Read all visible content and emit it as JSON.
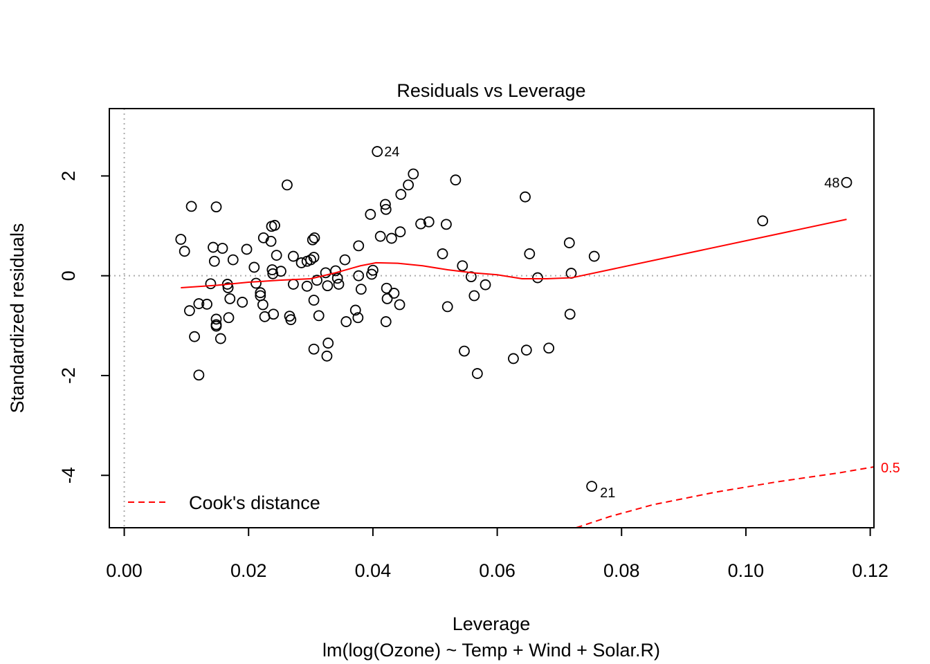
{
  "chart_data": {
    "type": "scatter",
    "title": "Residuals vs Leverage",
    "xlabel": "Leverage",
    "subtitle": "lm(log(Ozone) ~ Temp + Wind + Solar.R)",
    "ylabel": "Standardized residuals",
    "xlim": [
      -0.0024,
      0.1206
    ],
    "ylim": [
      -5.05,
      3.35
    ],
    "xticks": [
      0.0,
      0.02,
      0.04,
      0.06,
      0.08,
      0.1,
      0.12
    ],
    "xtick_labels": [
      "0.00",
      "0.02",
      "0.04",
      "0.06",
      "0.08",
      "0.10",
      "0.12"
    ],
    "yticks": [
      -4,
      -2,
      0,
      2
    ],
    "ytick_labels": [
      "-4",
      "-2",
      "0",
      "2"
    ],
    "grid": false,
    "reference_lines": {
      "h": 0,
      "v": 0,
      "style": "dotted",
      "color": "#aaaaaa"
    },
    "colors": {
      "points": "#000000",
      "smooth": "#ff0000",
      "cooks": "#ff0000"
    },
    "points": [
      {
        "x": 0.0091,
        "y": 0.73
      },
      {
        "x": 0.0097,
        "y": 0.49
      },
      {
        "x": 0.0105,
        "y": -0.7
      },
      {
        "x": 0.0108,
        "y": 1.39
      },
      {
        "x": 0.0113,
        "y": -1.22
      },
      {
        "x": 0.012,
        "y": -0.56
      },
      {
        "x": 0.012,
        "y": -1.99
      },
      {
        "x": 0.0133,
        "y": -0.57
      },
      {
        "x": 0.0139,
        "y": -0.16
      },
      {
        "x": 0.0143,
        "y": 0.57
      },
      {
        "x": 0.0145,
        "y": 0.29
      },
      {
        "x": 0.0148,
        "y": 1.38
      },
      {
        "x": 0.0148,
        "y": -0.87
      },
      {
        "x": 0.0148,
        "y": -0.98
      },
      {
        "x": 0.0148,
        "y": -1.01
      },
      {
        "x": 0.0155,
        "y": -1.26
      },
      {
        "x": 0.0158,
        "y": 0.55
      },
      {
        "x": 0.0166,
        "y": -0.17
      },
      {
        "x": 0.0167,
        "y": -0.24
      },
      {
        "x": 0.0168,
        "y": -0.84
      },
      {
        "x": 0.017,
        "y": -0.46
      },
      {
        "x": 0.0175,
        "y": 0.32
      },
      {
        "x": 0.019,
        "y": -0.53
      },
      {
        "x": 0.0197,
        "y": 0.53
      },
      {
        "x": 0.0209,
        "y": 0.17
      },
      {
        "x": 0.0212,
        "y": -0.15
      },
      {
        "x": 0.0219,
        "y": -0.34
      },
      {
        "x": 0.0219,
        "y": -0.4
      },
      {
        "x": 0.0223,
        "y": -0.58
      },
      {
        "x": 0.0224,
        "y": 0.76
      },
      {
        "x": 0.0226,
        "y": -0.82
      },
      {
        "x": 0.0236,
        "y": 0.69
      },
      {
        "x": 0.0237,
        "y": 0.99
      },
      {
        "x": 0.0238,
        "y": 0.12
      },
      {
        "x": 0.0239,
        "y": 0.04
      },
      {
        "x": 0.024,
        "y": -0.77
      },
      {
        "x": 0.0242,
        "y": 1.01
      },
      {
        "x": 0.0245,
        "y": 0.41
      },
      {
        "x": 0.0252,
        "y": 0.09
      },
      {
        "x": 0.0262,
        "y": 1.82
      },
      {
        "x": 0.0266,
        "y": -0.81
      },
      {
        "x": 0.0268,
        "y": -0.88
      },
      {
        "x": 0.0272,
        "y": -0.17
      },
      {
        "x": 0.0272,
        "y": 0.39
      },
      {
        "x": 0.0285,
        "y": 0.26
      },
      {
        "x": 0.0294,
        "y": -0.21
      },
      {
        "x": 0.0294,
        "y": 0.29
      },
      {
        "x": 0.03,
        "y": 0.32
      },
      {
        "x": 0.0303,
        "y": 0.72
      },
      {
        "x": 0.0305,
        "y": -1.47
      },
      {
        "x": 0.0305,
        "y": -0.49
      },
      {
        "x": 0.0305,
        "y": 0.37
      },
      {
        "x": 0.0306,
        "y": 0.76
      },
      {
        "x": 0.031,
        "y": -0.09
      },
      {
        "x": 0.0313,
        "y": -0.8
      },
      {
        "x": 0.0324,
        "y": 0.06
      },
      {
        "x": 0.0326,
        "y": -1.61
      },
      {
        "x": 0.0327,
        "y": -0.2
      },
      {
        "x": 0.0328,
        "y": -1.35
      },
      {
        "x": 0.034,
        "y": 0.1
      },
      {
        "x": 0.0343,
        "y": -0.05
      },
      {
        "x": 0.0345,
        "y": -0.17
      },
      {
        "x": 0.0355,
        "y": 0.32
      },
      {
        "x": 0.0357,
        "y": -0.92
      },
      {
        "x": 0.0372,
        "y": -0.69
      },
      {
        "x": 0.0376,
        "y": -0.84
      },
      {
        "x": 0.0377,
        "y": 0.6
      },
      {
        "x": 0.0377,
        "y": 0.0
      },
      {
        "x": 0.0381,
        "y": -0.27
      },
      {
        "x": 0.0396,
        "y": 1.23
      },
      {
        "x": 0.0398,
        "y": 0.03
      },
      {
        "x": 0.04,
        "y": 0.11
      },
      {
        "x": 0.0407,
        "y": 2.49
      },
      {
        "x": 0.0412,
        "y": 0.79
      },
      {
        "x": 0.042,
        "y": 1.43
      },
      {
        "x": 0.0421,
        "y": 1.33
      },
      {
        "x": 0.0421,
        "y": -0.92
      },
      {
        "x": 0.0422,
        "y": -0.25
      },
      {
        "x": 0.0423,
        "y": -0.46
      },
      {
        "x": 0.043,
        "y": 0.75
      },
      {
        "x": 0.0434,
        "y": -0.35
      },
      {
        "x": 0.0443,
        "y": -0.58
      },
      {
        "x": 0.0444,
        "y": 0.88
      },
      {
        "x": 0.0445,
        "y": 1.63
      },
      {
        "x": 0.0457,
        "y": 1.82
      },
      {
        "x": 0.0465,
        "y": 2.04
      },
      {
        "x": 0.0477,
        "y": 1.04
      },
      {
        "x": 0.049,
        "y": 1.08
      },
      {
        "x": 0.0512,
        "y": 0.44
      },
      {
        "x": 0.0518,
        "y": 1.03
      },
      {
        "x": 0.052,
        "y": -0.62
      },
      {
        "x": 0.0533,
        "y": 1.92
      },
      {
        "x": 0.0544,
        "y": 0.2
      },
      {
        "x": 0.0547,
        "y": -1.51
      },
      {
        "x": 0.0558,
        "y": -0.02
      },
      {
        "x": 0.0563,
        "y": -0.4
      },
      {
        "x": 0.0568,
        "y": -1.96
      },
      {
        "x": 0.0581,
        "y": -0.18
      },
      {
        "x": 0.0626,
        "y": -1.66
      },
      {
        "x": 0.0645,
        "y": 1.58
      },
      {
        "x": 0.0647,
        "y": -1.49
      },
      {
        "x": 0.0652,
        "y": 0.44
      },
      {
        "x": 0.0665,
        "y": -0.04
      },
      {
        "x": 0.0683,
        "y": -1.45
      },
      {
        "x": 0.0716,
        "y": 0.66
      },
      {
        "x": 0.0717,
        "y": -0.77
      },
      {
        "x": 0.0719,
        "y": 0.05
      },
      {
        "x": 0.0752,
        "y": -4.22
      },
      {
        "x": 0.0756,
        "y": 0.39
      },
      {
        "x": 0.1027,
        "y": 1.1
      },
      {
        "x": 0.1162,
        "y": 1.87
      }
    ],
    "labeled_points": [
      {
        "label": "24",
        "x": 0.0407,
        "y": 2.49,
        "side": "right"
      },
      {
        "label": "48",
        "x": 0.1162,
        "y": 1.87,
        "side": "left"
      },
      {
        "label": "21",
        "x": 0.0752,
        "y": -4.22,
        "side": "right-below"
      }
    ],
    "smooth_line": [
      {
        "x": 0.0091,
        "y": -0.24
      },
      {
        "x": 0.015,
        "y": -0.19
      },
      {
        "x": 0.02,
        "y": -0.13
      },
      {
        "x": 0.025,
        "y": -0.09
      },
      {
        "x": 0.03,
        "y": -0.06
      },
      {
        "x": 0.034,
        "y": 0.06
      },
      {
        "x": 0.038,
        "y": 0.2
      },
      {
        "x": 0.0405,
        "y": 0.26
      },
      {
        "x": 0.044,
        "y": 0.25
      },
      {
        "x": 0.048,
        "y": 0.2
      },
      {
        "x": 0.052,
        "y": 0.12
      },
      {
        "x": 0.056,
        "y": 0.06
      },
      {
        "x": 0.06,
        "y": 0.02
      },
      {
        "x": 0.064,
        "y": -0.06
      },
      {
        "x": 0.068,
        "y": -0.06
      },
      {
        "x": 0.072,
        "y": -0.04
      },
      {
        "x": 0.1162,
        "y": 1.13
      }
    ],
    "cooks_distance": {
      "level_label": "0.5",
      "points": [
        {
          "x": 0.0727,
          "y": -5.05
        },
        {
          "x": 0.078,
          "y": -4.83
        },
        {
          "x": 0.085,
          "y": -4.59
        },
        {
          "x": 0.095,
          "y": -4.34
        },
        {
          "x": 0.105,
          "y": -4.13
        },
        {
          "x": 0.115,
          "y": -3.95
        },
        {
          "x": 0.1206,
          "y": -3.83
        }
      ]
    },
    "legend": {
      "entry": "Cook's distance",
      "placement": "bottom-left",
      "style": "dashed",
      "color": "#ff0000"
    }
  }
}
